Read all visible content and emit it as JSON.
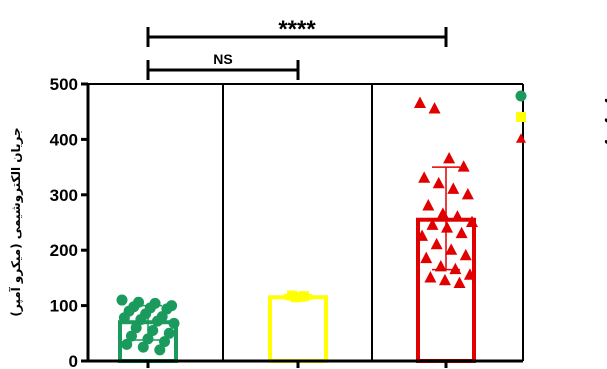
{
  "chart_data": {
    "type": "bar",
    "ylabel": "جریان الکتروشیمی (میکرو آمپر)",
    "ylim": [
      0,
      500
    ],
    "yticks": [
      0,
      100,
      200,
      300,
      400,
      500
    ],
    "grid": false,
    "legend_position": "right",
    "series": [
      {
        "name": "منفی",
        "color": "#1a9a5c",
        "marker": "circle",
        "mean": 70,
        "error": [
          38,
          100
        ],
        "points": [
          110,
          106,
          104,
          100,
          98,
          96,
          94,
          90,
          85,
          80,
          78,
          75,
          72,
          68,
          60,
          55,
          50,
          45,
          40,
          35,
          30,
          25,
          20
        ]
      },
      {
        "name": "مشکوک",
        "color": "#ffff00",
        "marker": "square",
        "mean": 115,
        "error": [
          112,
          120
        ],
        "points": [
          118,
          117,
          116,
          115
        ]
      },
      {
        "name": "مثبت",
        "color": "#e00000",
        "marker": "triangle",
        "mean": 255,
        "error": [
          165,
          350
        ],
        "points": [
          465,
          455,
          365,
          350,
          330,
          320,
          310,
          300,
          280,
          265,
          260,
          250,
          245,
          240,
          230,
          225,
          210,
          200,
          190,
          185,
          170,
          165,
          155,
          150,
          145,
          140
        ]
      }
    ],
    "significance": [
      {
        "from": 0,
        "to": 1,
        "label": "NS"
      },
      {
        "from": 0,
        "to": 2,
        "label": "****"
      }
    ]
  }
}
